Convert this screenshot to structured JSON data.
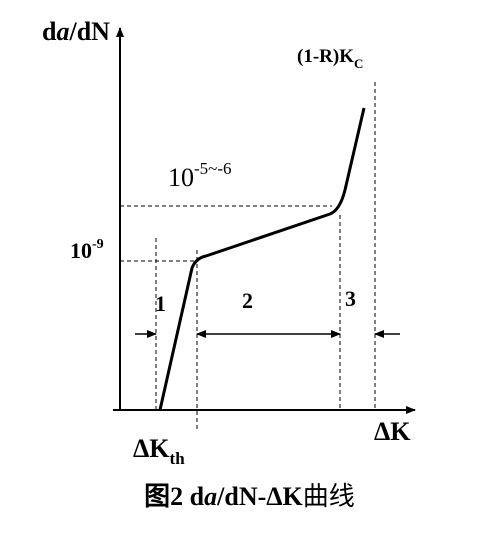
{
  "axes": {
    "y_label_prefix": "d",
    "y_label_italic": "a",
    "y_label_suffix": "/dN",
    "x_label": "ΔK"
  },
  "annotations": {
    "kc_label": "(1-R)K",
    "kc_subscript": "C",
    "rate_high_base": "10",
    "rate_high_exp": "-5~-6",
    "rate_low_base": "10",
    "rate_low_exp": "-9",
    "kth_label": "ΔK",
    "kth_subscript": "th"
  },
  "regions": [
    "1",
    "2",
    "3"
  ],
  "caption": {
    "prefix": "图2 d",
    "italic": "a",
    "middle": "/dN-ΔK",
    "suffix": "曲线"
  },
  "colors": {
    "ink": "#000000"
  }
}
